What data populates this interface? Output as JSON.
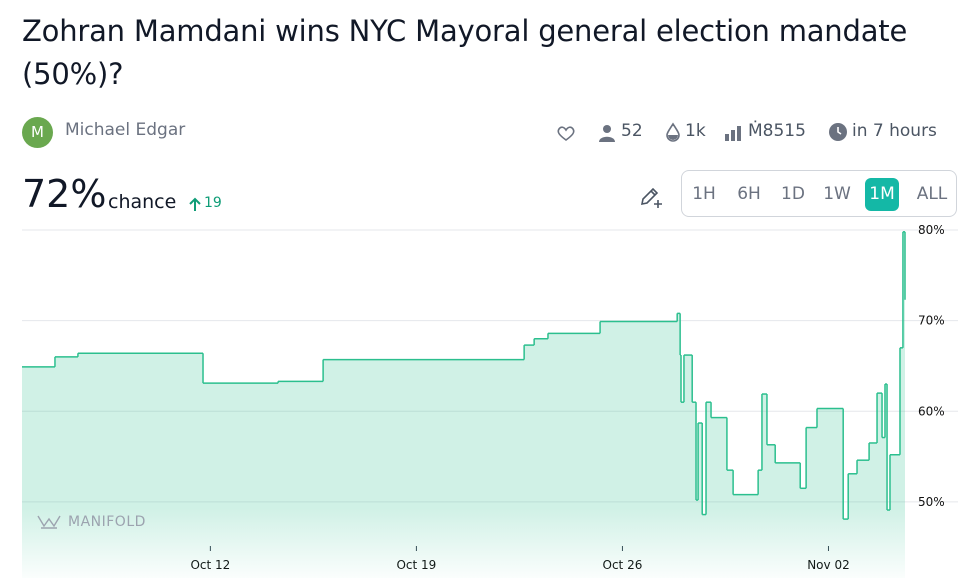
{
  "title": "Zohran Mamdani wins NYC Mayoral general election mandate (50%)?",
  "author": {
    "initial": "M",
    "name": "Michael Edgar"
  },
  "stats": {
    "traders": "52",
    "volume": "1k",
    "liquidity": "Ṁ8515",
    "closes": "in 7 hours"
  },
  "probability": {
    "value": "72%",
    "label": "chance",
    "change": "19"
  },
  "time_ranges": [
    "1H",
    "6H",
    "1D",
    "1W",
    "1M",
    "ALL"
  ],
  "active_range": "1M",
  "watermark": "MANIFOLD",
  "chart_data": {
    "type": "step",
    "x": [
      5.6,
      6.72,
      7.5,
      11.75,
      14.3,
      15.83,
      22.66,
      23.0,
      23.47,
      25.24,
      27.86,
      27.96,
      27.99,
      28.09,
      28.37,
      28.5,
      28.57,
      28.71,
      28.84,
      29.01,
      29.55,
      29.76,
      30.61,
      30.74,
      30.91,
      31.19,
      32.04,
      32.24,
      32.61,
      33.5,
      33.67,
      33.97,
      34.38,
      34.65,
      34.82,
      34.92,
      34.99,
      35.09,
      35.43,
      35.53,
      35.6
    ],
    "series": [
      {
        "color": "#2bbf8e",
        "values": [
          64.9,
          66.0,
          66.4,
          63.1,
          63.3,
          65.7,
          67.3,
          68.0,
          68.6,
          69.9,
          70.8,
          66.2,
          61.0,
          66.2,
          61.0,
          50.2,
          58.7,
          48.6,
          61.0,
          59.3,
          53.5,
          50.8,
          53.5,
          61.9,
          56.3,
          54.3,
          51.5,
          58.2,
          60.3,
          48.1,
          53.1,
          54.6,
          56.5,
          62.0,
          57.1,
          63.0,
          49.1,
          55.2,
          67.0,
          79.8,
          72.3
        ]
      }
    ],
    "xlim": [
      5.6,
      35.6
    ],
    "xticks": [
      {
        "value": 12,
        "label": "Oct 12"
      },
      {
        "value": 19,
        "label": "Oct 19"
      },
      {
        "value": 26,
        "label": "Oct 26"
      },
      {
        "value": 33,
        "label": "Nov 02"
      }
    ],
    "ylim": [
      41.6,
      80
    ],
    "yticks": [
      {
        "value": 50,
        "label": "50%"
      },
      {
        "value": 60,
        "label": "60%"
      },
      {
        "value": 70,
        "label": "70%"
      },
      {
        "value": 80,
        "label": "80%"
      }
    ],
    "grid": true
  }
}
